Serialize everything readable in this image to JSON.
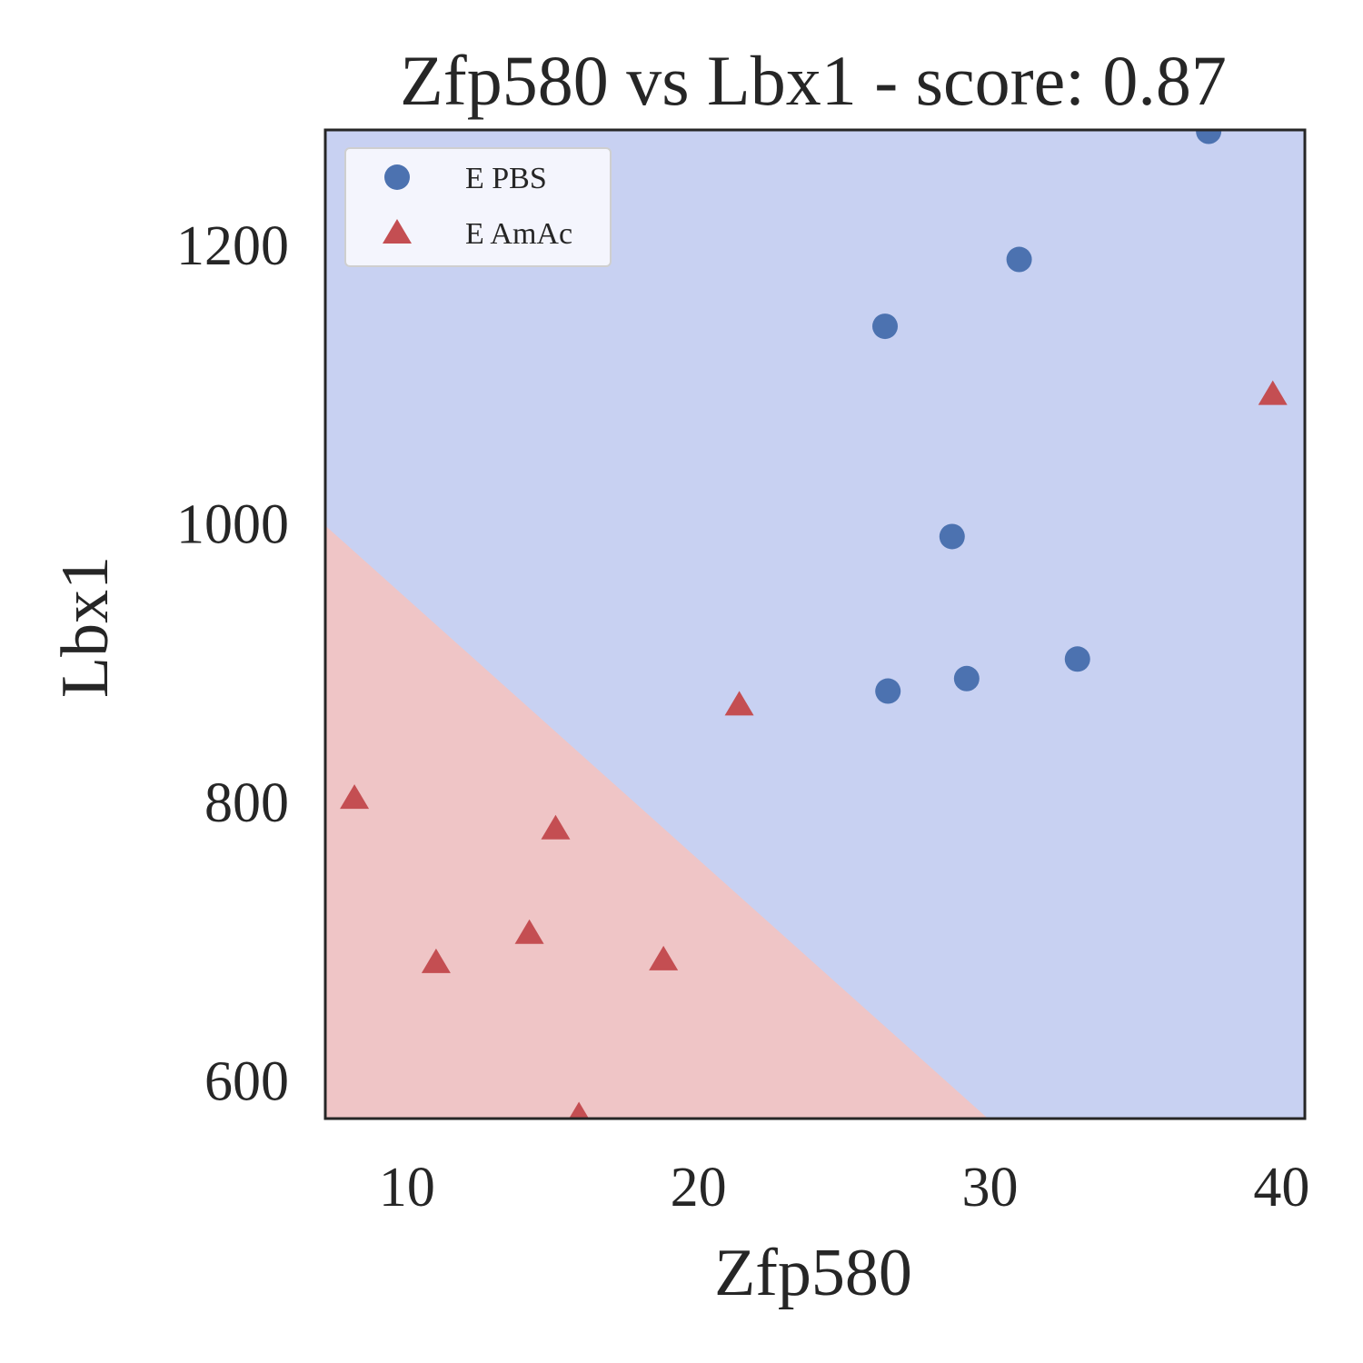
{
  "chart_data": {
    "type": "scatter",
    "title": "Zfp580 vs Lbx1 - score: 0.87",
    "xlabel": "Zfp580",
    "ylabel": "Lbx1",
    "xlim": [
      7.2,
      40.8
    ],
    "ylim": [
      573,
      1283
    ],
    "x_ticks": [
      10,
      20,
      30,
      40
    ],
    "x_tick_labels": [
      "10",
      "20",
      "30",
      "40"
    ],
    "y_ticks": [
      600,
      800,
      1000,
      1200
    ],
    "y_tick_labels": [
      "600",
      "800",
      "1000",
      "1200"
    ],
    "grid": false,
    "legend_position": "top-left",
    "decision_regions": {
      "boundary_line": [
        [
          7.2,
          1000
        ],
        [
          30.0,
          573
        ]
      ],
      "above_class": "E PBS",
      "below_class": "E AmAc",
      "above_color": "#c8d1f2",
      "below_color": "#efc5c6"
    },
    "series": [
      {
        "name": "E PBS",
        "marker": "circle",
        "color": "#4c72b0",
        "points": [
          [
            37.5,
            1282
          ],
          [
            31.0,
            1190
          ],
          [
            26.4,
            1142
          ],
          [
            28.7,
            991
          ],
          [
            33.0,
            903
          ],
          [
            29.2,
            889
          ],
          [
            26.5,
            880
          ]
        ]
      },
      {
        "name": "E AmAc",
        "marker": "triangle",
        "color": "#c44e52",
        "points": [
          [
            39.7,
            1092
          ],
          [
            21.4,
            869
          ],
          [
            8.2,
            802
          ],
          [
            15.1,
            780
          ],
          [
            14.2,
            705
          ],
          [
            11.0,
            684
          ],
          [
            18.8,
            686
          ],
          [
            15.9,
            574
          ]
        ]
      }
    ]
  }
}
